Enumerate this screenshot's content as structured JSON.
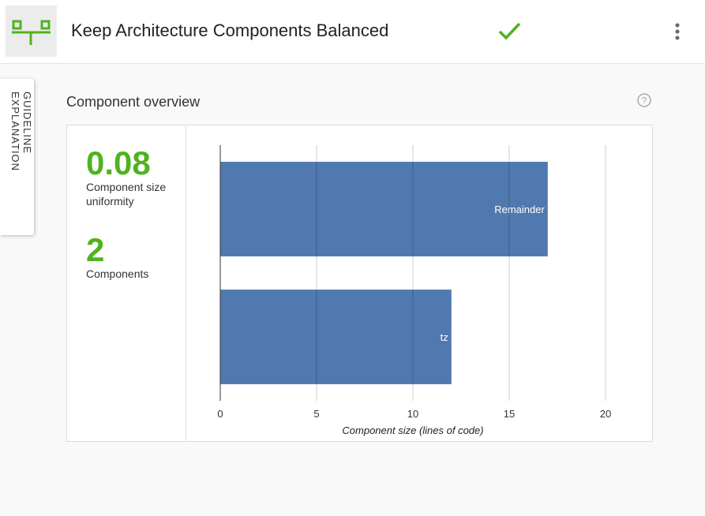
{
  "header": {
    "title": "Keep Architecture Components Balanced"
  },
  "sidebar_tab": {
    "label": "GUIDELINE EXPLANATION"
  },
  "panel": {
    "title": "Component overview",
    "metrics": [
      {
        "value": 0.08,
        "label": "Component size uniformity"
      },
      {
        "value": 2,
        "label": "Components"
      }
    ]
  },
  "chart_data": {
    "type": "bar",
    "orientation": "horizontal",
    "categories": [
      "Remainder",
      "tz"
    ],
    "values": [
      17,
      12
    ],
    "color": "#5079af",
    "xlim": [
      0,
      20
    ],
    "xticks": [
      0,
      5,
      10,
      15,
      20
    ],
    "xlabel": "Component size (lines of code)",
    "grid": true
  }
}
